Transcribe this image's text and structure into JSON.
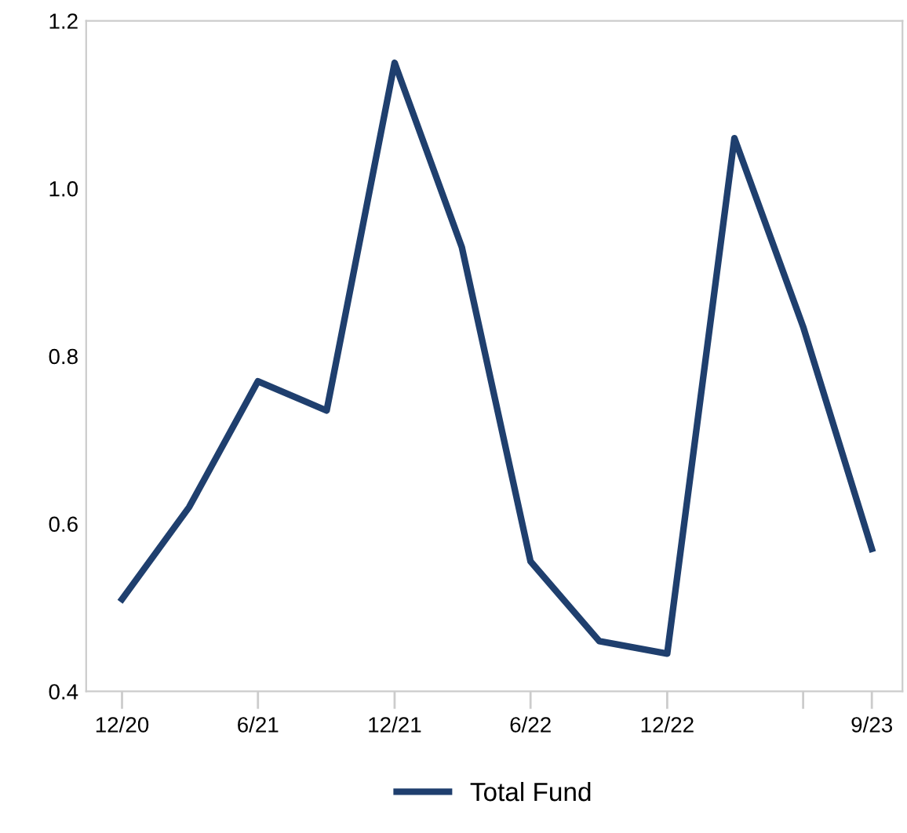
{
  "chart_data": {
    "type": "line",
    "x": [
      "2020-12",
      "2021-03",
      "2021-06",
      "2021-09",
      "2021-12",
      "2022-03",
      "2022-06",
      "2022-09",
      "2022-12",
      "2023-03",
      "2023-06",
      "2023-09"
    ],
    "series": [
      {
        "name": "Total Fund",
        "color": "#1f3f6e",
        "values": [
          0.51,
          0.62,
          0.77,
          0.735,
          1.15,
          0.93,
          0.555,
          0.46,
          0.445,
          1.06,
          0.835,
          0.57
        ]
      }
    ],
    "xlim": [
      "2020-10-14",
      "2023-10-12"
    ],
    "xticks": [
      {
        "value": "2020-12",
        "label": "12/20"
      },
      {
        "value": "2021-06",
        "label": "6/21"
      },
      {
        "value": "2021-12",
        "label": "12/21"
      },
      {
        "value": "2022-06",
        "label": "6/22"
      },
      {
        "value": "2022-12",
        "label": "12/22"
      },
      {
        "value": "2023-06",
        "label": null
      },
      {
        "value": "2023-09",
        "label": "9/23"
      }
    ],
    "ylim": [
      0.4,
      1.2
    ],
    "yticks": [
      0.4,
      0.6,
      0.8,
      {
        "value": 1.0,
        "label": "1.0"
      },
      1.2
    ],
    "grid": false,
    "legend": "bottom",
    "marker": "none",
    "line_style": "solid"
  }
}
